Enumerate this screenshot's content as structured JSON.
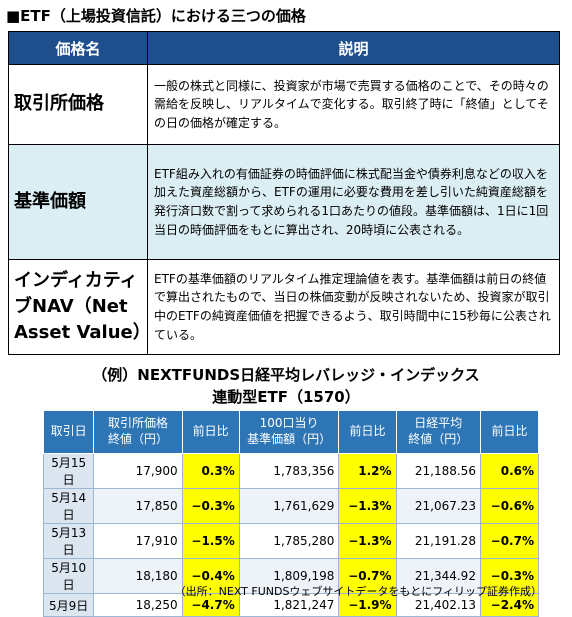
{
  "header": {
    "title": "■ETF（上場投資信託）における三つの価格"
  },
  "table": {
    "columns": [
      "価格名",
      "説明"
    ],
    "rows": [
      [
        "取引所価格",
        "一般の株式と同様に、投資家が市場で売買する価格のことで、その時々の需給を反映し、リアルタイムで変化する。取引終了時に「終値」としてその日の価格が確定する。"
      ],
      [
        "基準価額",
        "ETF組み入れの有価証券の時価評価に株式配当金や債券利息などの収入を加えた資産総額から、ETFの運用に必要な費用を差し引いた純資産総額を発行済口数で割って求められる1口あたりの値段。基準価額は、1日に1回当日の時価評価をもとに算出され、20時頃に公表される。"
      ],
      [
        "インディカティブNAV（Net Asset Value）",
        "ETFの基準価額のリアルタイム推定理論値を表す。基準価額は前日の終値で算出されたもので、当日の株価変動が反映されないため、投資家が取引中のETFの純資産価値を把握できるよう、取引時間中に15秒毎に公表されている。"
      ]
    ]
  },
  "example": {
    "title": [
      "（例）NEXTFUNDS日経平均レバレッジ・インデックス",
      "連動型ETF（1570）"
    ],
    "columns": [
      "取引日",
      "取引所価格\n終値（円）",
      "前日比",
      "100口当り\n基準価額（円）",
      "前日比",
      "日経平均\n終値（円）",
      "前日比"
    ],
    "rows": [
      [
        "5月15日",
        "17,900",
        "0.3%",
        "1,783,356",
        "1.2%",
        "21,188.56",
        "0.6%"
      ],
      [
        "5月14日",
        "17,850",
        "−0.3%",
        "1,761,629",
        "−1.3%",
        "21,067.23",
        "−0.6%"
      ],
      [
        "5月13日",
        "17,910",
        "−1.5%",
        "1,785,280",
        "−1.3%",
        "21,191.28",
        "−0.7%"
      ],
      [
        "5月10日",
        "18,180",
        "−0.4%",
        "1,809,198",
        "−0.7%",
        "21,344.92",
        "−0.3%"
      ],
      [
        "5月9日",
        "18,250",
        "−4.7%",
        "1,821,247",
        "−1.9%",
        "21,402.13",
        "−2.4%"
      ]
    ],
    "source": "（出所：NEXT FUNDSウェブサイトデータをもとにフィリップ証券作成）"
  }
}
